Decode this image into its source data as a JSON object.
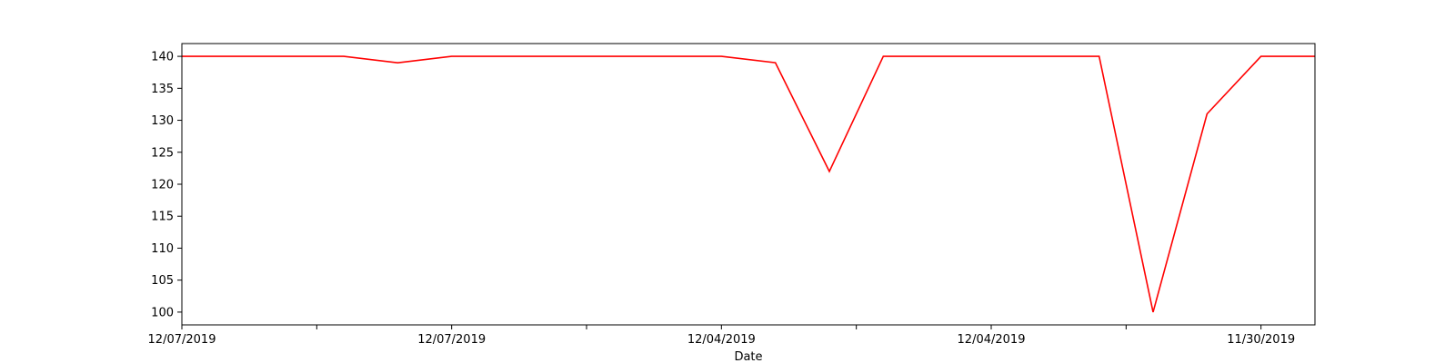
{
  "chart_data": {
    "type": "line",
    "title": "",
    "xlabel": "Date",
    "ylabel": "",
    "grid": false,
    "legend": "none",
    "x_tick_labels": [
      "12/07/2019",
      "",
      "12/07/2019",
      "",
      "12/04/2019",
      "",
      "12/04/2019",
      "",
      "11/30/2019"
    ],
    "y_ticks": [
      100,
      105,
      110,
      115,
      120,
      125,
      130,
      135,
      140
    ],
    "ylim": [
      98,
      142
    ],
    "series": [
      {
        "color": "#ff0000",
        "values": [
          140,
          140,
          140,
          140,
          139,
          140,
          140,
          140,
          140,
          140,
          140,
          139,
          122,
          140,
          140,
          140,
          140,
          140,
          100,
          131,
          140,
          140
        ]
      }
    ]
  }
}
